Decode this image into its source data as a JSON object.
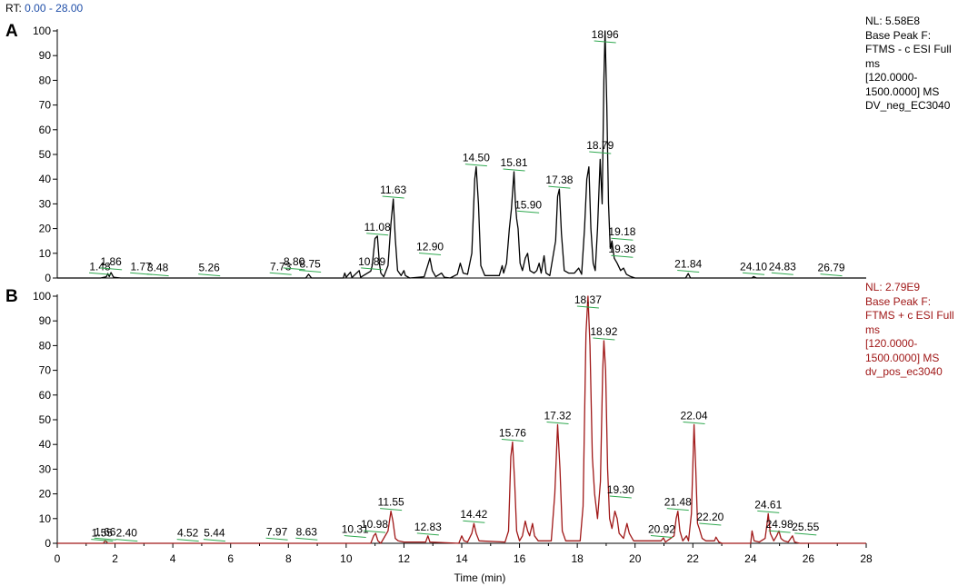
{
  "header": {
    "rt_prefix": "RT:",
    "rt_range": "0.00 - 28.00"
  },
  "colors": {
    "negative_trace": "#000000",
    "positive_trace": "#a01818",
    "annotation_marker": "#2fa84f",
    "axis": "#000000"
  },
  "chart_data": [
    {
      "type": "line",
      "panel": "A",
      "info": [
        "NL: 5.58E8",
        "Base Peak F:",
        "FTMS - c ESI Full",
        "ms",
        "[120.0000-",
        "1500.0000]  MS",
        "DV_neg_EC3040"
      ],
      "xlim": [
        0,
        28
      ],
      "ylim": [
        0,
        100
      ],
      "yticks": [
        0,
        10,
        20,
        30,
        40,
        50,
        60,
        70,
        80,
        90,
        100
      ],
      "xticks": [],
      "xlabel": "",
      "ylabel": "",
      "peak_labels": [
        {
          "text": "1.48",
          "rt": 1.48,
          "y": 1
        },
        {
          "text": "1.86",
          "rt": 1.86,
          "y": 3
        },
        {
          "text": "1.77",
          "rt": 2.9,
          "y": 1
        },
        {
          "text": "3.48",
          "rt": 3.48,
          "y": 0.5
        },
        {
          "text": "5.26",
          "rt": 5.26,
          "y": 0.5
        },
        {
          "text": "7.73",
          "rt": 7.73,
          "y": 1
        },
        {
          "text": "8.80",
          "rt": 8.2,
          "y": 3
        },
        {
          "text": "8.75",
          "rt": 8.75,
          "y": 2
        },
        {
          "text": "10.89",
          "rt": 10.89,
          "y": 3
        },
        {
          "text": "11.08",
          "rt": 11.08,
          "y": 17
        },
        {
          "text": "11.63",
          "rt": 11.63,
          "y": 32
        },
        {
          "text": "12.90",
          "rt": 12.9,
          "y": 9
        },
        {
          "text": "14.50",
          "rt": 14.5,
          "y": 45
        },
        {
          "text": "15.81",
          "rt": 15.81,
          "y": 43
        },
        {
          "text": "15.90",
          "rt": 16.3,
          "y": 26
        },
        {
          "text": "17.38",
          "rt": 17.38,
          "y": 36
        },
        {
          "text": "18.79",
          "rt": 18.79,
          "y": 50
        },
        {
          "text": "18.96",
          "rt": 18.96,
          "y": 100
        },
        {
          "text": "19.18",
          "rt": 19.55,
          "y": 15
        },
        {
          "text": "19.38",
          "rt": 19.55,
          "y": 8
        },
        {
          "text": "21.84",
          "rt": 21.84,
          "y": 2
        },
        {
          "text": "24.10",
          "rt": 24.1,
          "y": 1
        },
        {
          "text": "24.83",
          "rt": 25.1,
          "y": 1
        },
        {
          "text": "26.79",
          "rt": 26.79,
          "y": 0.5
        }
      ],
      "trace": [
        [
          0.0,
          0
        ],
        [
          1.5,
          0
        ],
        [
          1.7,
          0.5
        ],
        [
          1.75,
          1.8
        ],
        [
          1.8,
          0.6
        ],
        [
          1.86,
          2.2
        ],
        [
          1.95,
          0.3
        ],
        [
          2.2,
          0
        ],
        [
          8.6,
          0
        ],
        [
          8.7,
          1.5
        ],
        [
          8.8,
          0
        ],
        [
          9.9,
          0
        ],
        [
          9.95,
          2.0
        ],
        [
          10.0,
          0.3
        ],
        [
          10.15,
          2.4
        ],
        [
          10.2,
          0.2
        ],
        [
          10.45,
          3.0
        ],
        [
          10.5,
          0.3
        ],
        [
          10.85,
          2.8
        ],
        [
          10.9,
          5
        ],
        [
          11.0,
          16
        ],
        [
          11.08,
          17
        ],
        [
          11.15,
          6
        ],
        [
          11.2,
          2
        ],
        [
          11.3,
          0.5
        ],
        [
          11.45,
          5
        ],
        [
          11.55,
          22
        ],
        [
          11.63,
          32
        ],
        [
          11.7,
          16
        ],
        [
          11.78,
          3
        ],
        [
          11.9,
          1
        ],
        [
          12.0,
          3
        ],
        [
          12.05,
          1
        ],
        [
          12.2,
          0
        ],
        [
          12.7,
          0.5
        ],
        [
          12.82,
          5
        ],
        [
          12.9,
          8
        ],
        [
          12.98,
          3
        ],
        [
          13.1,
          0.5
        ],
        [
          13.3,
          2
        ],
        [
          13.4,
          0.3
        ],
        [
          13.6,
          0
        ],
        [
          13.85,
          1.5
        ],
        [
          13.95,
          6
        ],
        [
          14.05,
          2
        ],
        [
          14.2,
          1.5
        ],
        [
          14.35,
          10
        ],
        [
          14.45,
          40
        ],
        [
          14.5,
          45
        ],
        [
          14.58,
          30
        ],
        [
          14.66,
          5
        ],
        [
          14.8,
          1
        ],
        [
          15.3,
          1
        ],
        [
          15.4,
          5
        ],
        [
          15.45,
          2
        ],
        [
          15.55,
          6
        ],
        [
          15.65,
          20
        ],
        [
          15.72,
          28
        ],
        [
          15.81,
          43
        ],
        [
          15.86,
          30
        ],
        [
          15.9,
          24
        ],
        [
          15.95,
          20
        ],
        [
          16.02,
          6
        ],
        [
          16.1,
          3
        ],
        [
          16.2,
          8
        ],
        [
          16.28,
          10
        ],
        [
          16.36,
          3
        ],
        [
          16.5,
          2
        ],
        [
          16.6,
          3
        ],
        [
          16.68,
          6
        ],
        [
          16.75,
          2
        ],
        [
          16.85,
          9
        ],
        [
          16.92,
          2
        ],
        [
          17.05,
          1
        ],
        [
          17.25,
          15
        ],
        [
          17.32,
          33
        ],
        [
          17.38,
          36
        ],
        [
          17.45,
          18
        ],
        [
          17.55,
          3
        ],
        [
          17.7,
          2
        ],
        [
          17.9,
          2
        ],
        [
          18.05,
          4
        ],
        [
          18.15,
          1.5
        ],
        [
          18.25,
          20
        ],
        [
          18.33,
          40
        ],
        [
          18.4,
          45
        ],
        [
          18.47,
          20
        ],
        [
          18.55,
          6
        ],
        [
          18.62,
          3
        ],
        [
          18.7,
          20
        ],
        [
          18.79,
          48
        ],
        [
          18.86,
          30
        ],
        [
          18.92,
          80
        ],
        [
          18.96,
          100
        ],
        [
          19.02,
          70
        ],
        [
          19.08,
          30
        ],
        [
          19.14,
          12
        ],
        [
          19.2,
          15
        ],
        [
          19.28,
          8
        ],
        [
          19.38,
          6
        ],
        [
          19.5,
          3
        ],
        [
          19.6,
          4
        ],
        [
          19.7,
          1.5
        ],
        [
          19.85,
          0.6
        ],
        [
          20.0,
          0
        ],
        [
          21.75,
          0
        ],
        [
          21.84,
          1.8
        ],
        [
          21.92,
          0
        ],
        [
          24.05,
          0
        ],
        [
          24.1,
          0.6
        ],
        [
          24.2,
          0
        ],
        [
          28.0,
          0
        ]
      ]
    },
    {
      "type": "line",
      "panel": "B",
      "info": [
        "NL: 2.79E9",
        "Base Peak F:",
        "FTMS + c ESI Full",
        "ms",
        "[120.0000-",
        "1500.0000]  MS",
        "dv_pos_ec3040"
      ],
      "xlim": [
        0,
        28
      ],
      "ylim": [
        0,
        100
      ],
      "yticks": [
        0,
        10,
        20,
        30,
        40,
        50,
        60,
        70,
        80,
        90,
        100
      ],
      "xticks": [
        0,
        2,
        4,
        6,
        8,
        10,
        12,
        14,
        16,
        18,
        20,
        22,
        24,
        26,
        28
      ],
      "xlabel": "Time (min)",
      "ylabel": "",
      "peak_labels": [
        {
          "text": "1.55",
          "rt": 1.55,
          "y": 0.5
        },
        {
          "text": "1.66",
          "rt": 1.66,
          "y": 1
        },
        {
          "text": "2.40",
          "rt": 2.4,
          "y": 0.5
        },
        {
          "text": "4.52",
          "rt": 4.52,
          "y": 0.5
        },
        {
          "text": "5.44",
          "rt": 5.44,
          "y": 0.5
        },
        {
          "text": "7.97",
          "rt": 7.6,
          "y": 1
        },
        {
          "text": "8.63",
          "rt": 8.63,
          "y": 1
        },
        {
          "text": "10.31",
          "rt": 10.31,
          "y": 2
        },
        {
          "text": "10.98",
          "rt": 10.98,
          "y": 4
        },
        {
          "text": "11.55",
          "rt": 11.55,
          "y": 13
        },
        {
          "text": "12.83",
          "rt": 12.83,
          "y": 3
        },
        {
          "text": "14.42",
          "rt": 14.42,
          "y": 8
        },
        {
          "text": "15.76",
          "rt": 15.76,
          "y": 41
        },
        {
          "text": "17.32",
          "rt": 17.32,
          "y": 48
        },
        {
          "text": "18.37",
          "rt": 18.37,
          "y": 100
        },
        {
          "text": "18.92",
          "rt": 18.92,
          "y": 82
        },
        {
          "text": "19.30",
          "rt": 19.5,
          "y": 18
        },
        {
          "text": "20.92",
          "rt": 20.92,
          "y": 2
        },
        {
          "text": "21.48",
          "rt": 21.48,
          "y": 13
        },
        {
          "text": "22.04",
          "rt": 22.04,
          "y": 48
        },
        {
          "text": "22.20",
          "rt": 22.6,
          "y": 7
        },
        {
          "text": "24.61",
          "rt": 24.61,
          "y": 12
        },
        {
          "text": "24.98",
          "rt": 25.0,
          "y": 4
        },
        {
          "text": "25.55",
          "rt": 25.9,
          "y": 3
        }
      ],
      "trace": [
        [
          0.0,
          0
        ],
        [
          1.6,
          0
        ],
        [
          1.66,
          1.2
        ],
        [
          1.75,
          0
        ],
        [
          10.85,
          0
        ],
        [
          10.95,
          3
        ],
        [
          11.02,
          4
        ],
        [
          11.1,
          1
        ],
        [
          11.2,
          0
        ],
        [
          11.45,
          5
        ],
        [
          11.55,
          13
        ],
        [
          11.62,
          9
        ],
        [
          11.7,
          2
        ],
        [
          11.8,
          1
        ],
        [
          12.0,
          0.5
        ],
        [
          12.75,
          0.5
        ],
        [
          12.83,
          3
        ],
        [
          12.9,
          0.5
        ],
        [
          13.9,
          0
        ],
        [
          14.0,
          3
        ],
        [
          14.08,
          1
        ],
        [
          14.2,
          0.5
        ],
        [
          14.35,
          4
        ],
        [
          14.42,
          8
        ],
        [
          14.5,
          4
        ],
        [
          14.6,
          1
        ],
        [
          15.5,
          0.5
        ],
        [
          15.62,
          5
        ],
        [
          15.7,
          35
        ],
        [
          15.76,
          41
        ],
        [
          15.83,
          25
        ],
        [
          15.9,
          5
        ],
        [
          16.0,
          1
        ],
        [
          16.1,
          3
        ],
        [
          16.2,
          9
        ],
        [
          16.28,
          5
        ],
        [
          16.35,
          3
        ],
        [
          16.45,
          8
        ],
        [
          16.52,
          3
        ],
        [
          16.65,
          1
        ],
        [
          17.1,
          1
        ],
        [
          17.22,
          20
        ],
        [
          17.32,
          48
        ],
        [
          17.4,
          30
        ],
        [
          17.48,
          5
        ],
        [
          17.6,
          1
        ],
        [
          18.1,
          1
        ],
        [
          18.2,
          15
        ],
        [
          18.3,
          85
        ],
        [
          18.37,
          100
        ],
        [
          18.44,
          80
        ],
        [
          18.52,
          35
        ],
        [
          18.6,
          20
        ],
        [
          18.7,
          10
        ],
        [
          18.8,
          25
        ],
        [
          18.88,
          70
        ],
        [
          18.92,
          82
        ],
        [
          18.98,
          70
        ],
        [
          19.05,
          30
        ],
        [
          19.12,
          10
        ],
        [
          19.2,
          6
        ],
        [
          19.3,
          13
        ],
        [
          19.38,
          10
        ],
        [
          19.45,
          4
        ],
        [
          19.6,
          2
        ],
        [
          19.72,
          8
        ],
        [
          19.8,
          4
        ],
        [
          19.95,
          1
        ],
        [
          20.9,
          1
        ],
        [
          20.98,
          2.2
        ],
        [
          21.05,
          0.5
        ],
        [
          21.35,
          3
        ],
        [
          21.42,
          10
        ],
        [
          21.48,
          13
        ],
        [
          21.55,
          5
        ],
        [
          21.65,
          1
        ],
        [
          21.78,
          3
        ],
        [
          21.85,
          1
        ],
        [
          21.95,
          12
        ],
        [
          22.04,
          48
        ],
        [
          22.1,
          30
        ],
        [
          22.16,
          8
        ],
        [
          22.22,
          6
        ],
        [
          22.32,
          2
        ],
        [
          22.45,
          1
        ],
        [
          22.75,
          1
        ],
        [
          22.8,
          2.5
        ],
        [
          22.9,
          0.5
        ],
        [
          23.0,
          0
        ],
        [
          24.0,
          0
        ],
        [
          24.05,
          5
        ],
        [
          24.12,
          1
        ],
        [
          24.3,
          0.5
        ],
        [
          24.5,
          2
        ],
        [
          24.58,
          9
        ],
        [
          24.61,
          12
        ],
        [
          24.68,
          4
        ],
        [
          24.8,
          1
        ],
        [
          24.9,
          3
        ],
        [
          24.98,
          5
        ],
        [
          25.05,
          2
        ],
        [
          25.15,
          1
        ],
        [
          25.3,
          0.5
        ],
        [
          25.45,
          3
        ],
        [
          25.52,
          0.5
        ],
        [
          25.7,
          0
        ],
        [
          28.0,
          0
        ]
      ]
    }
  ]
}
